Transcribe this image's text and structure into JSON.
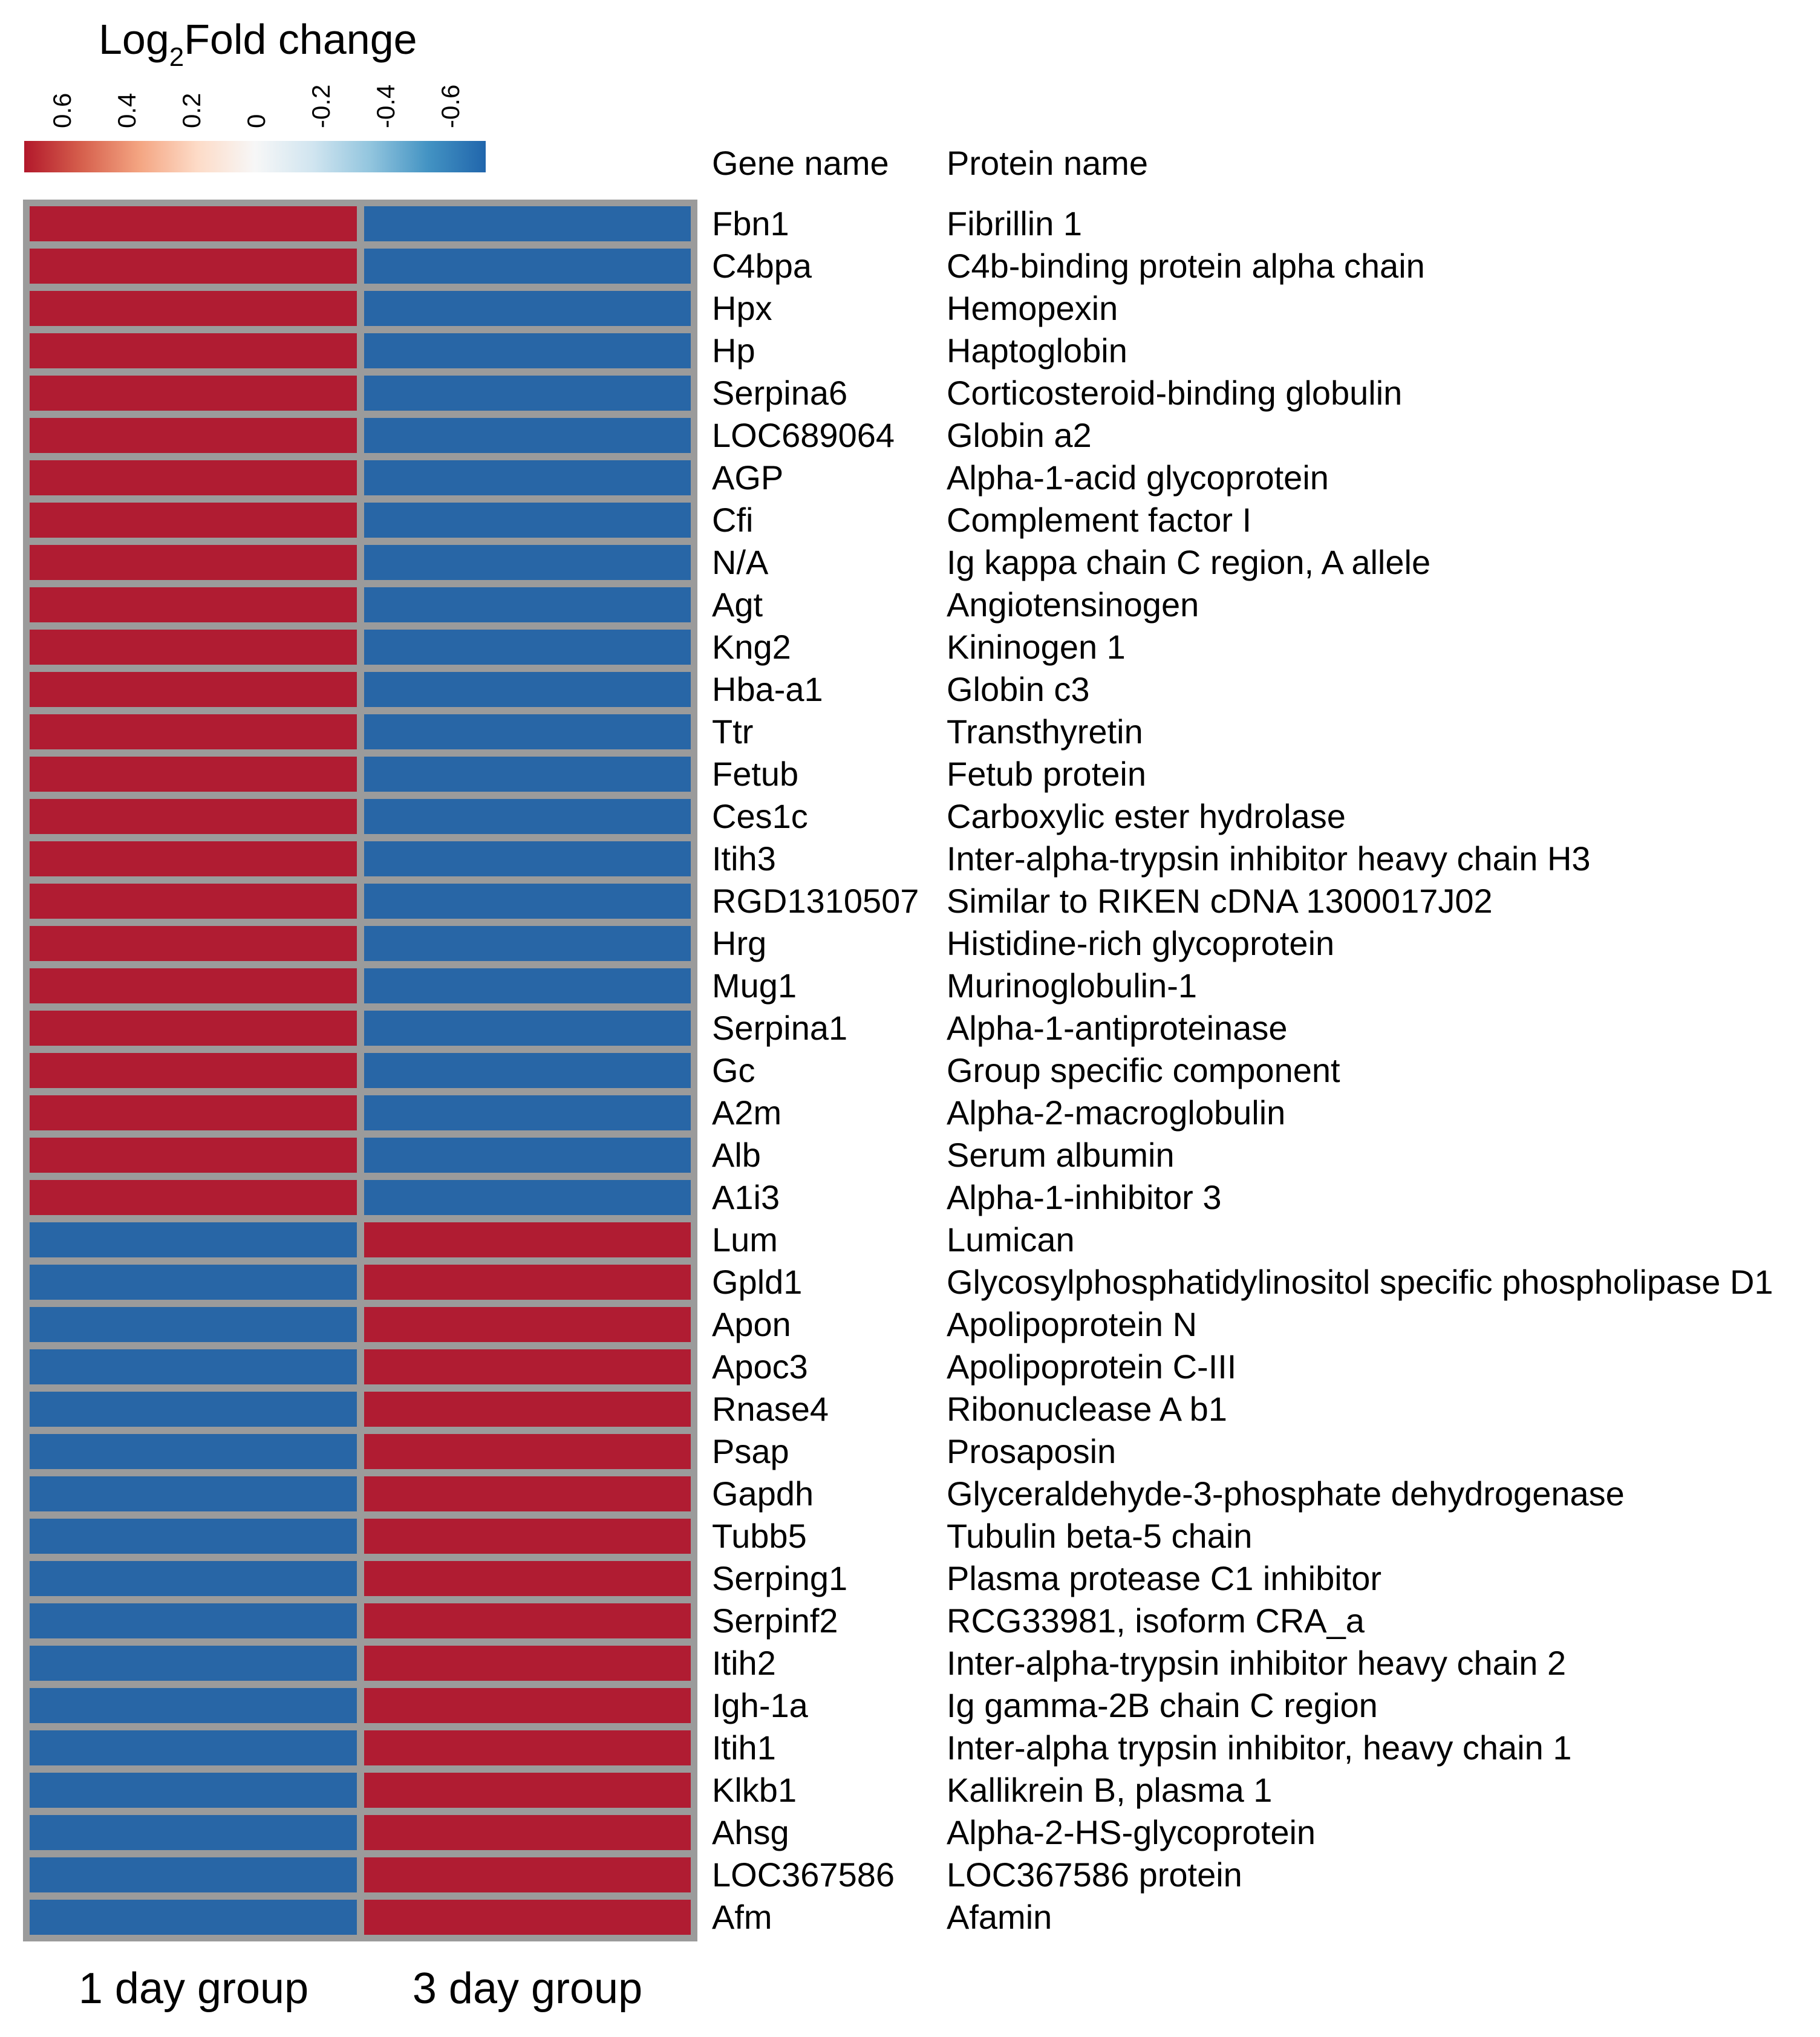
{
  "legend": {
    "title": {
      "prefix": "Log",
      "subscript": "2",
      "suffix": "Fold change"
    },
    "ticks": [
      "0.6",
      "0.4",
      "0.2",
      "0",
      "-0.2",
      "-0.4",
      "-0.6"
    ]
  },
  "table_headers": {
    "gene": "Gene name",
    "protein": "Protein name"
  },
  "colors": {
    "positive_cell": "#B01C32",
    "negative_cell": "#2866A6",
    "frame": "#9B9B9B",
    "gradient": [
      "#B2182B",
      "#D6604D",
      "#F4A582",
      "#FDDBC7",
      "#F7F7F7",
      "#D1E5F0",
      "#92C5DE",
      "#4393C3",
      "#2166AC"
    ]
  },
  "chart_data": {
    "type": "heatmap",
    "title": "Log2 Fold change",
    "columns": [
      "1 day group",
      "3 day group"
    ],
    "colormap": "RdBu (red = positive/up, blue = negative/down)",
    "value_range": [
      -0.6,
      0.6
    ],
    "legend_ticks": [
      0.6,
      0.4,
      0.2,
      0,
      -0.2,
      -0.4,
      -0.6
    ],
    "legend_axis_note": "color scale drawn with positive values on the left, negative on the right",
    "legend_position": "top-left",
    "rows": [
      {
        "gene": "Fbn1",
        "protein": "Fibrillin 1",
        "values": [
          0.6,
          -0.6
        ]
      },
      {
        "gene": "C4bpa",
        "protein": "C4b-binding protein alpha chain",
        "values": [
          0.6,
          -0.6
        ]
      },
      {
        "gene": "Hpx",
        "protein": "Hemopexin",
        "values": [
          0.6,
          -0.6
        ]
      },
      {
        "gene": "Hp",
        "protein": "Haptoglobin",
        "values": [
          0.6,
          -0.6
        ]
      },
      {
        "gene": "Serpina6",
        "protein": "Corticosteroid-binding globulin",
        "values": [
          0.6,
          -0.6
        ]
      },
      {
        "gene": "LOC689064",
        "protein": "Globin a2",
        "values": [
          0.6,
          -0.6
        ]
      },
      {
        "gene": "AGP",
        "protein": "Alpha-1-acid glycoprotein",
        "values": [
          0.6,
          -0.6
        ]
      },
      {
        "gene": "Cfi",
        "protein": "Complement factor I",
        "values": [
          0.6,
          -0.6
        ]
      },
      {
        "gene": "N/A",
        "protein": "Ig kappa chain C region, A allele",
        "values": [
          0.6,
          -0.6
        ]
      },
      {
        "gene": "Agt",
        "protein": "Angiotensinogen",
        "values": [
          0.6,
          -0.6
        ]
      },
      {
        "gene": "Kng2",
        "protein": "Kininogen 1",
        "values": [
          0.6,
          -0.6
        ]
      },
      {
        "gene": "Hba-a1",
        "protein": "Globin c3",
        "values": [
          0.6,
          -0.6
        ]
      },
      {
        "gene": "Ttr",
        "protein": "Transthyretin",
        "values": [
          0.6,
          -0.6
        ]
      },
      {
        "gene": "Fetub",
        "protein": "Fetub protein",
        "values": [
          0.6,
          -0.6
        ]
      },
      {
        "gene": "Ces1c",
        "protein": "Carboxylic ester hydrolase",
        "values": [
          0.6,
          -0.6
        ]
      },
      {
        "gene": "Itih3",
        "protein": "Inter-alpha-trypsin inhibitor heavy chain H3",
        "values": [
          0.6,
          -0.6
        ]
      },
      {
        "gene": "RGD1310507",
        "protein": "Similar to RIKEN cDNA 1300017J02",
        "values": [
          0.6,
          -0.6
        ]
      },
      {
        "gene": "Hrg",
        "protein": "Histidine-rich glycoprotein",
        "values": [
          0.6,
          -0.6
        ]
      },
      {
        "gene": "Mug1",
        "protein": "Murinoglobulin-1",
        "values": [
          0.6,
          -0.6
        ]
      },
      {
        "gene": "Serpina1",
        "protein": "Alpha-1-antiproteinase",
        "values": [
          0.6,
          -0.6
        ]
      },
      {
        "gene": "Gc",
        "protein": "Group specific component",
        "values": [
          0.6,
          -0.6
        ]
      },
      {
        "gene": "A2m",
        "protein": "Alpha-2-macroglobulin",
        "values": [
          0.6,
          -0.6
        ]
      },
      {
        "gene": "Alb",
        "protein": "Serum albumin",
        "values": [
          0.6,
          -0.6
        ]
      },
      {
        "gene": "A1i3",
        "protein": "Alpha-1-inhibitor 3",
        "values": [
          0.6,
          -0.6
        ]
      },
      {
        "gene": "Lum",
        "protein": "Lumican",
        "values": [
          -0.6,
          0.6
        ]
      },
      {
        "gene": "Gpld1",
        "protein": "Glycosylphosphatidylinositol specific phospholipase D1",
        "values": [
          -0.6,
          0.6
        ]
      },
      {
        "gene": "Apon",
        "protein": "Apolipoprotein N",
        "values": [
          -0.6,
          0.6
        ]
      },
      {
        "gene": "Apoc3",
        "protein": "Apolipoprotein C-III",
        "values": [
          -0.6,
          0.6
        ]
      },
      {
        "gene": "Rnase4",
        "protein": "Ribonuclease A b1",
        "values": [
          -0.6,
          0.6
        ]
      },
      {
        "gene": "Psap",
        "protein": "Prosaposin",
        "values": [
          -0.6,
          0.6
        ]
      },
      {
        "gene": "Gapdh",
        "protein": "Glyceraldehyde-3-phosphate dehydrogenase",
        "values": [
          -0.6,
          0.6
        ]
      },
      {
        "gene": "Tubb5",
        "protein": "Tubulin beta-5 chain",
        "values": [
          -0.6,
          0.6
        ]
      },
      {
        "gene": "Serping1",
        "protein": "Plasma protease C1 inhibitor",
        "values": [
          -0.6,
          0.6
        ]
      },
      {
        "gene": "Serpinf2",
        "protein": "RCG33981, isoform CRA_a",
        "values": [
          -0.6,
          0.6
        ]
      },
      {
        "gene": "Itih2",
        "protein": "Inter-alpha-trypsin inhibitor heavy chain 2",
        "values": [
          -0.6,
          0.6
        ]
      },
      {
        "gene": "Igh-1a",
        "protein": "Ig gamma-2B chain C region",
        "values": [
          -0.6,
          0.6
        ]
      },
      {
        "gene": "Itih1",
        "protein": "Inter-alpha trypsin inhibitor, heavy chain 1",
        "values": [
          -0.6,
          0.6
        ]
      },
      {
        "gene": "Klkb1",
        "protein": "Kallikrein B, plasma 1",
        "values": [
          -0.6,
          0.6
        ]
      },
      {
        "gene": "Ahsg",
        "protein": "Alpha-2-HS-glycoprotein",
        "values": [
          -0.6,
          0.6
        ]
      },
      {
        "gene": "LOC367586",
        "protein": "LOC367586 protein",
        "values": [
          -0.6,
          0.6
        ]
      },
      {
        "gene": "Afm",
        "protein": "Afamin",
        "values": [
          -0.6,
          0.6
        ]
      }
    ]
  }
}
